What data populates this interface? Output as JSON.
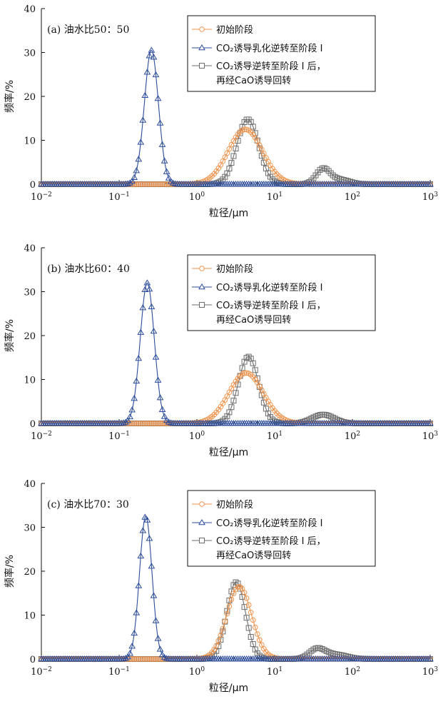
{
  "series_names": [
    "初始阶段",
    "CO₂诱导乳化逆转至阶段 I",
    "CO₂诱导逆转至阶段 I 后，",
    "再经CaO诱导回转"
  ],
  "colors": {
    "initial": "#f0924a",
    "co2": "#2b4c9b",
    "cao": "#6e6e6e",
    "axis": "#111111"
  },
  "chart_data": [
    {
      "type": "line",
      "title": "(a) 油水比50：50",
      "xlabel": "粒径/μm",
      "ylabel": "频率/%",
      "xscale": "log",
      "xlim": [
        0.01,
        1000
      ],
      "ylim": [
        0,
        40
      ],
      "yticks": [
        0,
        10,
        20,
        30,
        40
      ],
      "series": [
        {
          "name": "初始阶段",
          "key": "initial",
          "peaks": [
            {
              "center": 4.2,
              "height": 12.5,
              "width": 0.22
            }
          ]
        },
        {
          "name": "CO₂诱导乳化逆转至阶段 I",
          "key": "co2",
          "peaks": [
            {
              "center": 0.26,
              "height": 30.5,
              "width": 0.09
            }
          ]
        },
        {
          "name": "CO₂诱导逆转至阶段 I 后，再经CaO诱导回转",
          "key": "cao",
          "peaks": [
            {
              "center": 4.5,
              "height": 14.8,
              "width": 0.14
            },
            {
              "center": 42,
              "height": 3.5,
              "width": 0.09
            },
            {
              "center": 70,
              "height": 1.0,
              "width": 0.12
            }
          ]
        }
      ]
    },
    {
      "type": "line",
      "title": "(b) 油水比60：40",
      "xlabel": "粒径/μm",
      "ylabel": "频率/%",
      "xscale": "log",
      "xlim": [
        0.01,
        1000
      ],
      "ylim": [
        0,
        40
      ],
      "yticks": [
        0,
        10,
        20,
        30,
        40
      ],
      "series": [
        {
          "name": "初始阶段",
          "key": "initial",
          "peaks": [
            {
              "center": 4.3,
              "height": 11.5,
              "width": 0.22
            }
          ]
        },
        {
          "name": "CO₂诱导乳化逆转至阶段 I",
          "key": "co2",
          "peaks": [
            {
              "center": 0.23,
              "height": 32.0,
              "width": 0.09
            }
          ]
        },
        {
          "name": "CO₂诱导逆转至阶段 I 后，再经CaO诱导回转",
          "key": "cao",
          "peaks": [
            {
              "center": 4.6,
              "height": 15.2,
              "width": 0.13
            },
            {
              "center": 42,
              "height": 2.0,
              "width": 0.14
            }
          ]
        }
      ]
    },
    {
      "type": "line",
      "title": "(c) 油水比70：30",
      "xlabel": "粒径/μm",
      "ylabel": "频率/%",
      "xscale": "log",
      "xlim": [
        0.01,
        1000
      ],
      "ylim": [
        0,
        40
      ],
      "yticks": [
        0,
        10,
        20,
        30,
        40
      ],
      "series": [
        {
          "name": "初始阶段",
          "key": "initial",
          "peaks": [
            {
              "center": 3.5,
              "height": 16.5,
              "width": 0.16
            }
          ]
        },
        {
          "name": "CO₂诱导乳化逆转至阶段 I",
          "key": "co2",
          "peaks": [
            {
              "center": 0.22,
              "height": 32.5,
              "width": 0.08
            }
          ]
        },
        {
          "name": "CO₂诱导逆转至阶段 I 后，再经CaO诱导回转",
          "key": "cao",
          "peaks": [
            {
              "center": 3.2,
              "height": 17.5,
              "width": 0.12
            },
            {
              "center": 35,
              "height": 2.2,
              "width": 0.1
            },
            {
              "center": 60,
              "height": 1.0,
              "width": 0.15
            }
          ]
        }
      ]
    }
  ]
}
